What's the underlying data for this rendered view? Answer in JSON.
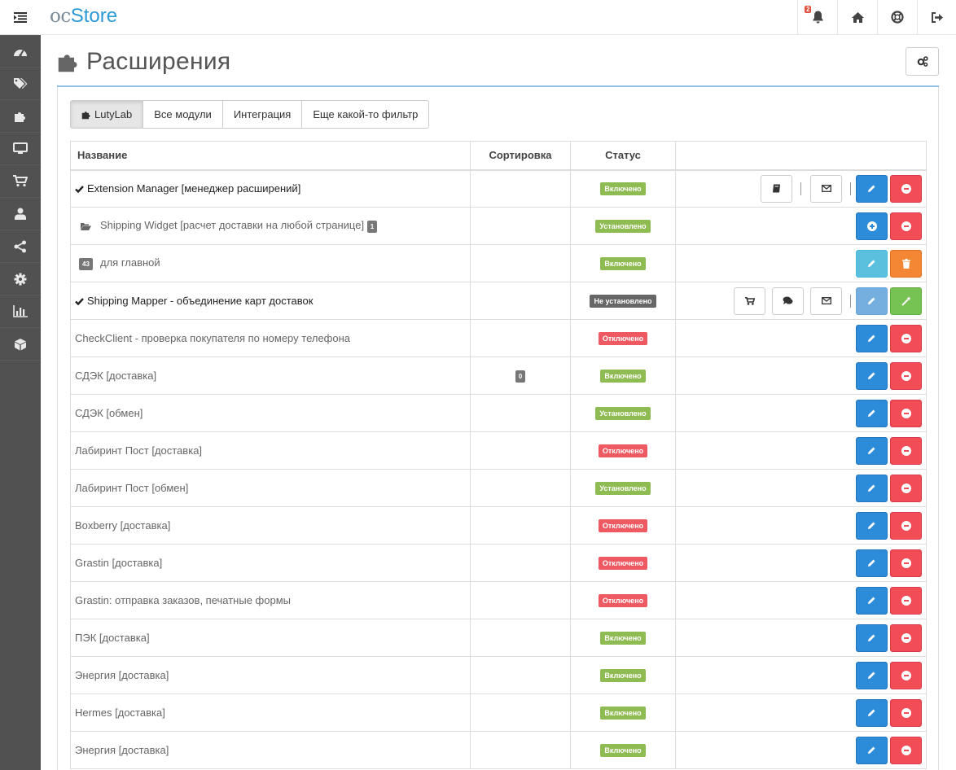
{
  "header": {
    "logo_oc": "oc",
    "logo_store": "Store",
    "notifications_count": "2"
  },
  "page": {
    "title": "Расширения"
  },
  "tabs": [
    {
      "label": "LutyLab",
      "active": true
    },
    {
      "label": "Все модули",
      "active": false
    },
    {
      "label": "Интеграция",
      "active": false
    },
    {
      "label": "Еще какой-то фильтр",
      "active": false
    }
  ],
  "table": {
    "columns": {
      "name": "Название",
      "sort": "Сортировка",
      "status": "Статус",
      "actions": ""
    },
    "rows": [
      {
        "name": "Extension Manager [менеджер расширений]",
        "sort": "",
        "status": "Включено",
        "status_type": "on"
      },
      {
        "name": "Shipping Widget [расчет доставки на любой странице]",
        "badge": "1",
        "sort": "",
        "status": "Установлено",
        "status_type": "inst"
      },
      {
        "prefix_badge": "43",
        "name": "для главной",
        "sort": "",
        "status": "Включено",
        "status_type": "on"
      },
      {
        "name": "Shipping Mapper - объединение карт доставок",
        "sort": "",
        "status": "Не установлено",
        "status_type": "none"
      },
      {
        "name": "CheckClient - проверка покупателя по номеру телефона",
        "sort": "",
        "status": "Отключено",
        "status_type": "off"
      },
      {
        "name": "СДЭК [доставка]",
        "sort": "0",
        "status": "Включено",
        "status_type": "on"
      },
      {
        "name": "СДЭК [обмен]",
        "sort": "",
        "status": "Установлено",
        "status_type": "inst"
      },
      {
        "name": "Лабиринт Пост [доставка]",
        "sort": "",
        "status": "Отключено",
        "status_type": "off"
      },
      {
        "name": "Лабиринт Пост [обмен]",
        "sort": "",
        "status": "Установлено",
        "status_type": "inst"
      },
      {
        "name": "Boxberry [доставка]",
        "sort": "",
        "status": "Отключено",
        "status_type": "off"
      },
      {
        "name": "Grastin [доставка]",
        "sort": "",
        "status": "Отключено",
        "status_type": "off"
      },
      {
        "name": "Grastin: отправка заказов, печатные формы",
        "sort": "",
        "status": "Отключено",
        "status_type": "off"
      },
      {
        "name": "ПЭК [доставка]",
        "sort": "",
        "status": "Включено",
        "status_type": "on"
      },
      {
        "name": "Энергия [доставка]",
        "sort": "",
        "status": "Включено",
        "status_type": "on"
      },
      {
        "name": "Hermes [доставка]",
        "sort": "",
        "status": "Включено",
        "status_type": "on"
      },
      {
        "name": "Энергия [доставка]",
        "sort": "",
        "status": "Включено",
        "status_type": "on"
      }
    ]
  },
  "icons": {
    "sidebar": [
      "dashboard-icon",
      "tags-icon",
      "puzzle-icon",
      "desktop-icon",
      "cart-icon",
      "user-icon",
      "share-icon",
      "cog-icon",
      "bar-chart-icon",
      "cube-icon"
    ],
    "header": [
      "bell-icon",
      "home-icon",
      "life-ring-icon",
      "sign-out-icon"
    ]
  },
  "colors": {
    "primary": "#2c8cd9",
    "danger": "#f24c57",
    "success": "#8fbb53",
    "sidebar": "#515151"
  }
}
